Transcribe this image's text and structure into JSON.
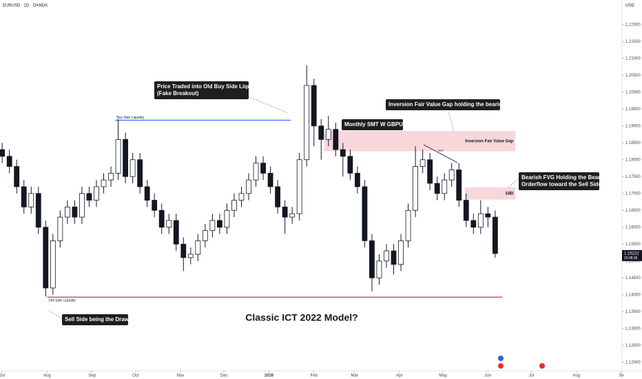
{
  "chart_data": {
    "type": "candlestick",
    "title": "EURUSD · 1D · OANDA",
    "currency": "USD",
    "countdown": "20:08:35",
    "subtitle": "Classic ICT 2022 Model?",
    "up_color": "#ffffff",
    "down_color": "#131722",
    "edge_color": "#131722",
    "x": [
      0,
      5,
      10,
      15,
      20,
      25,
      30,
      35,
      40,
      45,
      50,
      55,
      60,
      65,
      70,
      75,
      80,
      85,
      90,
      95,
      100,
      105,
      110,
      115,
      120,
      125,
      130,
      135,
      140,
      145,
      150,
      155,
      160,
      165,
      170,
      175,
      180,
      185,
      190,
      195,
      200,
      205,
      210,
      215,
      220,
      225,
      230,
      235,
      240,
      245,
      250,
      255,
      260,
      265,
      270,
      275,
      280,
      285,
      290,
      295,
      300,
      305,
      310,
      315,
      320,
      325,
      330,
      335,
      340
    ],
    "open": [
      1.183,
      1.181,
      1.178,
      1.172,
      1.166,
      1.17,
      1.16,
      1.142,
      1.156,
      1.163,
      1.166,
      1.163,
      1.17,
      1.168,
      1.172,
      1.174,
      1.176,
      1.186,
      1.175,
      1.18,
      1.172,
      1.168,
      1.165,
      1.16,
      1.162,
      1.155,
      1.151,
      1.152,
      1.156,
      1.159,
      1.162,
      1.16,
      1.165,
      1.168,
      1.17,
      1.174,
      1.179,
      1.176,
      1.172,
      1.166,
      1.163,
      1.164,
      1.18,
      1.202,
      1.19,
      1.186,
      1.189,
      1.183,
      1.181,
      1.176,
      1.172,
      1.156,
      1.145,
      1.15,
      1.153,
      1.149,
      1.156,
      1.165,
      1.178,
      1.18,
      1.173,
      1.17,
      1.174,
      1.177,
      1.168,
      1.162,
      1.16,
      1.164,
      1.163
    ],
    "high": [
      1.185,
      1.183,
      1.18,
      1.174,
      1.172,
      1.172,
      1.162,
      1.158,
      1.165,
      1.168,
      1.168,
      1.172,
      1.172,
      1.174,
      1.176,
      1.178,
      1.192,
      1.188,
      1.182,
      1.182,
      1.174,
      1.17,
      1.167,
      1.164,
      1.164,
      1.157,
      1.154,
      1.158,
      1.161,
      1.164,
      1.164,
      1.167,
      1.17,
      1.172,
      1.176,
      1.181,
      1.181,
      1.178,
      1.174,
      1.168,
      1.166,
      1.182,
      1.208,
      1.204,
      1.192,
      1.193,
      1.191,
      1.185,
      1.183,
      1.178,
      1.174,
      1.158,
      1.152,
      1.155,
      1.155,
      1.158,
      1.167,
      1.184,
      1.183,
      1.182,
      1.175,
      1.176,
      1.179,
      1.179,
      1.17,
      1.164,
      1.168,
      1.166,
      1.165
    ],
    "low": [
      1.179,
      1.176,
      1.17,
      1.164,
      1.164,
      1.158,
      1.1395,
      1.14,
      1.154,
      1.161,
      1.161,
      1.161,
      1.166,
      1.166,
      1.17,
      1.172,
      1.174,
      1.173,
      1.173,
      1.17,
      1.166,
      1.163,
      1.158,
      1.158,
      1.153,
      1.147,
      1.149,
      1.15,
      1.154,
      1.157,
      1.158,
      1.158,
      1.163,
      1.166,
      1.168,
      1.172,
      1.174,
      1.17,
      1.164,
      1.158,
      1.161,
      1.162,
      1.178,
      1.184,
      1.18,
      1.184,
      1.181,
      1.175,
      1.174,
      1.17,
      1.154,
      1.141,
      1.143,
      1.148,
      1.146,
      1.147,
      1.154,
      1.163,
      1.176,
      1.171,
      1.168,
      1.168,
      1.172,
      1.166,
      1.16,
      1.158,
      1.158,
      1.16,
      1.151
    ],
    "close": [
      1.181,
      1.178,
      1.172,
      1.166,
      1.17,
      1.16,
      1.142,
      1.156,
      1.163,
      1.166,
      1.163,
      1.17,
      1.168,
      1.172,
      1.174,
      1.176,
      1.186,
      1.175,
      1.18,
      1.172,
      1.168,
      1.165,
      1.16,
      1.162,
      1.155,
      1.151,
      1.152,
      1.156,
      1.159,
      1.162,
      1.16,
      1.165,
      1.168,
      1.17,
      1.174,
      1.179,
      1.176,
      1.172,
      1.166,
      1.163,
      1.164,
      1.18,
      1.202,
      1.19,
      1.186,
      1.189,
      1.183,
      1.181,
      1.176,
      1.172,
      1.156,
      1.145,
      1.15,
      1.153,
      1.149,
      1.156,
      1.165,
      1.178,
      1.18,
      1.173,
      1.17,
      1.174,
      1.177,
      1.168,
      1.162,
      1.16,
      1.164,
      1.163,
      1.15222
    ],
    "xlim": [
      -1.5,
      427
    ],
    "ylim": [
      1.1175,
      1.2273
    ],
    "xticks": [
      {
        "value": 0,
        "label": "Jul"
      },
      {
        "value": 31,
        "label": "Aug"
      },
      {
        "value": 62,
        "label": "Sep"
      },
      {
        "value": 92,
        "label": "Oct"
      },
      {
        "value": 123,
        "label": "Nov"
      },
      {
        "value": 153,
        "label": "Dec"
      },
      {
        "value": 184,
        "label": "2026"
      },
      {
        "value": 215,
        "label": "Feb"
      },
      {
        "value": 243,
        "label": "Mar"
      },
      {
        "value": 274,
        "label": "Apr"
      },
      {
        "value": 304,
        "label": "May"
      },
      {
        "value": 335,
        "label": "Jun"
      },
      {
        "value": 365,
        "label": "Jul"
      },
      {
        "value": 396,
        "label": "Aug"
      },
      {
        "value": 427,
        "label": "Se"
      }
    ],
    "yticks": [
      {
        "value": 1.12,
        "label": "1.12000"
      },
      {
        "value": 1.125,
        "label": "1.12500"
      },
      {
        "value": 1.13,
        "label": "1.13000"
      },
      {
        "value": 1.135,
        "label": "1.13500"
      },
      {
        "value": 1.14,
        "label": "1.14000"
      },
      {
        "value": 1.145,
        "label": "1.14500"
      },
      {
        "value": 1.15,
        "label": "1.15000"
      },
      {
        "value": 1.155,
        "label": "1.15500"
      },
      {
        "value": 1.16,
        "label": "1.16000"
      },
      {
        "value": 1.165,
        "label": "1.16500"
      },
      {
        "value": 1.17,
        "label": "1.17000"
      },
      {
        "value": 1.175,
        "label": "1.17500"
      },
      {
        "value": 1.18,
        "label": "1.18000"
      },
      {
        "value": 1.185,
        "label": "1.18500"
      },
      {
        "value": 1.19,
        "label": "1.19000"
      },
      {
        "value": 1.195,
        "label": "1.19500"
      },
      {
        "value": 1.2,
        "label": "1.20000"
      },
      {
        "value": 1.205,
        "label": "1.20500"
      },
      {
        "value": 1.21,
        "label": "1.21000"
      },
      {
        "value": 1.215,
        "label": "1.21500"
      },
      {
        "value": 1.22,
        "label": "1.22000"
      }
    ],
    "levels": [
      {
        "label": "Buy Side Liquidity",
        "color": "#2962ff",
        "value": 1.1917,
        "x": [
          78,
          199
        ]
      },
      {
        "label": "Sell Side Liquidity",
        "color": "#b2283a",
        "value": 1.1393,
        "x": [
          31,
          345
        ]
      }
    ],
    "zones": [
      {
        "label": "Inversion Fair Value Gap",
        "color": "#f8d7da",
        "range": [
          1.1825,
          1.1885
        ],
        "x": [
          222,
          354
        ]
      },
      {
        "label": "SIBI",
        "color": "#f8d7da",
        "range": [
          1.1682,
          1.1718
        ],
        "x": [
          319,
          354
        ]
      }
    ],
    "smt_label": "SMT",
    "annotations": [
      {
        "lines": [
          "Price Traded into Old Buy Side Liquidity",
          "(Fake Breakout)"
        ]
      },
      {
        "lines": [
          "Inversion Fair Value Gap holding the bearish PA"
        ]
      },
      {
        "lines": [
          "Monthly SMT W GBPUSD"
        ]
      },
      {
        "lines": [
          "Bearish FVG Holding the Bearish",
          "Orderflow toward the Sell Side"
        ]
      },
      {
        "lines": [
          "Sell Side being the Draw"
        ]
      }
    ]
  }
}
